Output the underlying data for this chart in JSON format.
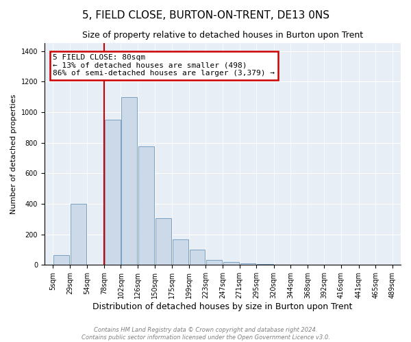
{
  "title": "5, FIELD CLOSE, BURTON-ON-TRENT, DE13 0NS",
  "subtitle": "Size of property relative to detached houses in Burton upon Trent",
  "xlabel": "Distribution of detached houses by size in Burton upon Trent",
  "ylabel": "Number of detached properties",
  "footnote1": "Contains HM Land Registry data © Crown copyright and database right 2024.",
  "footnote2": "Contains public sector information licensed under the Open Government Licence v3.0.",
  "bar_color": "#ccd9e8",
  "bar_edge_color": "#7ba0c0",
  "vline_color": "#cc0000",
  "box_edge_color": "#cc0000",
  "box_fill_color": "#ffffff",
  "bin_labels": [
    "5sqm",
    "29sqm",
    "54sqm",
    "78sqm",
    "102sqm",
    "126sqm",
    "150sqm",
    "175sqm",
    "199sqm",
    "223sqm",
    "247sqm",
    "271sqm",
    "295sqm",
    "320sqm",
    "344sqm",
    "368sqm",
    "392sqm",
    "416sqm",
    "441sqm",
    "465sqm",
    "489sqm"
  ],
  "bin_edges": [
    5,
    29,
    54,
    78,
    102,
    126,
    150,
    175,
    199,
    223,
    247,
    271,
    295,
    320,
    344,
    368,
    392,
    416,
    441,
    465,
    489
  ],
  "bar_heights": [
    65,
    400,
    0,
    950,
    1100,
    775,
    305,
    165,
    100,
    35,
    20,
    10,
    5,
    0,
    0,
    0,
    0,
    0,
    0,
    0
  ],
  "vline_x": 78,
  "ylim": [
    0,
    1450
  ],
  "yticks": [
    0,
    200,
    400,
    600,
    800,
    1000,
    1200,
    1400
  ],
  "annotation_title": "5 FIELD CLOSE: 80sqm",
  "annotation_line1": "← 13% of detached houses are smaller (498)",
  "annotation_line2": "86% of semi-detached houses are larger (3,379) →",
  "background_color": "#e8eef5",
  "grid_color": "#ffffff",
  "title_fontsize": 11,
  "subtitle_fontsize": 9,
  "ylabel_fontsize": 8,
  "xlabel_fontsize": 9,
  "tick_fontsize": 7,
  "annotation_fontsize": 8,
  "footnote_fontsize": 6
}
